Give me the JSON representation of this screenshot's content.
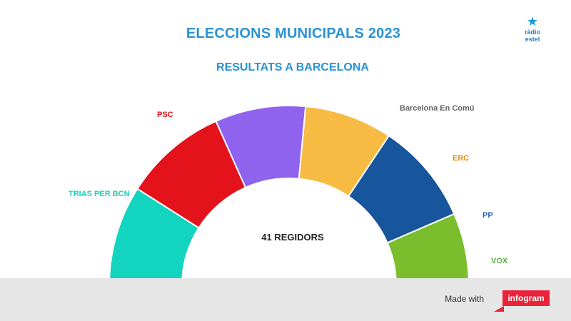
{
  "header": {
    "title": "ELECCIONS MUNICIPALS 2023",
    "subtitle": "RESULTATS A BARCELONA",
    "brand_line1": "ràdio",
    "brand_line2": "estel"
  },
  "chart_data": {
    "type": "pie",
    "shape": "semicircle",
    "title": "ELECCIONS MUNICIPALS 2023",
    "subtitle": "RESULTATS A BARCELONA",
    "center_label": "41 REGIDORS",
    "total": 41,
    "series": [
      {
        "label": "TRIAS PER BCN",
        "value": 11,
        "color": "#12d4bf",
        "label_color": "#12d4bf"
      },
      {
        "label": "PSC",
        "value": 10,
        "color": "#e3121b",
        "label_color": "#e3121b"
      },
      {
        "label": "",
        "value": 0,
        "color": "#8f63ee"
      },
      {
        "label": "Barcelona En Comú",
        "value": 9,
        "color": "#f7bb44",
        "label_color": "#666666"
      },
      {
        "label": "ERC",
        "value": 5,
        "color": "#17559c",
        "label_color": "#e88c10"
      },
      {
        "label": "PP",
        "value": 4,
        "color": "#7bbe2d",
        "label_color": "#1f5fae"
      },
      {
        "label": "VOX",
        "value": 2,
        "color": "#7bbe2d",
        "label_color": "#57b33d"
      }
    ],
    "segment_angles_deg": [
      0,
      32.5,
      66,
      95.3,
      123.7,
      156.6,
      180
    ]
  },
  "footer": {
    "made_with": "Made with",
    "brand": "infogram"
  }
}
